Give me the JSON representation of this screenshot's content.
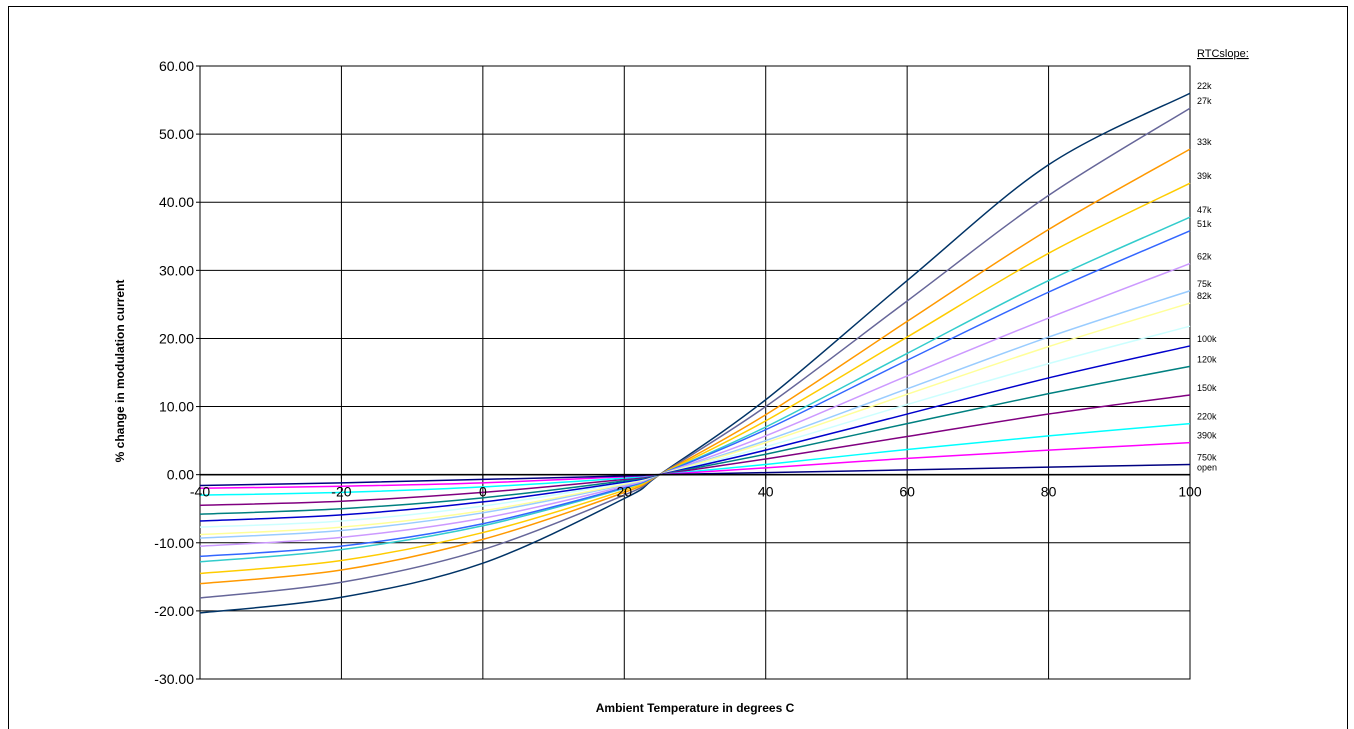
{
  "chart_data": {
    "type": "line",
    "title": "",
    "xlabel": "Ambient Temperature in degrees C",
    "ylabel": "% change in modulation current",
    "xlim": [
      -40,
      100
    ],
    "ylim": [
      -30,
      60
    ],
    "xticks": [
      -40,
      -20,
      0,
      20,
      40,
      60,
      80,
      100
    ],
    "yticks": [
      -30,
      -20,
      -10,
      0,
      10,
      20,
      30,
      40,
      50,
      60
    ],
    "xtick_labels": [
      "-40",
      "-20",
      "0",
      "20",
      "40",
      "60",
      "80",
      "100"
    ],
    "ytick_labels": [
      "-30.00",
      "-20.00",
      "-10.00",
      "0.00",
      "10.00",
      "20.00",
      "30.00",
      "40.00",
      "50.00",
      "60.00"
    ],
    "grid": true,
    "legend_title": "RTCslope:",
    "legend_placement": "right",
    "x": [
      -40,
      -20,
      0,
      20,
      25,
      40,
      60,
      80,
      100
    ],
    "series": [
      {
        "name": "22k",
        "color": "#003366",
        "values": [
          -20.3,
          -18.0,
          -13.0,
          -3.5,
          0,
          11.0,
          28.5,
          45.5,
          56.0
        ]
      },
      {
        "name": "27k",
        "color": "#666699",
        "values": [
          -18.1,
          -15.8,
          -11.0,
          -3.0,
          0,
          10.0,
          25.5,
          41.0,
          53.8
        ]
      },
      {
        "name": "33k",
        "color": "#FF9900",
        "values": [
          -16.0,
          -14.0,
          -9.5,
          -2.6,
          0,
          8.8,
          22.5,
          36.0,
          47.8
        ]
      },
      {
        "name": "39k",
        "color": "#FFCC00",
        "values": [
          -14.5,
          -12.6,
          -8.5,
          -2.3,
          0,
          7.9,
          20.2,
          32.5,
          42.8
        ]
      },
      {
        "name": "47k",
        "color": "#33CCCC",
        "values": [
          -12.8,
          -11.0,
          -7.5,
          -2.0,
          0,
          7.0,
          17.8,
          28.5,
          37.8
        ]
      },
      {
        "name": "51k",
        "color": "#3366FF",
        "values": [
          -12.0,
          -10.5,
          -7.2,
          -1.9,
          0,
          6.6,
          16.8,
          26.8,
          35.8
        ]
      },
      {
        "name": "62k",
        "color": "#CC99FF",
        "values": [
          -10.5,
          -9.2,
          -6.4,
          -1.7,
          0,
          5.7,
          14.5,
          23.0,
          31.0
        ]
      },
      {
        "name": "75k",
        "color": "#99CCFF",
        "values": [
          -9.3,
          -8.2,
          -5.6,
          -1.5,
          0,
          5.0,
          12.6,
          20.2,
          27.0
        ]
      },
      {
        "name": "82k",
        "color": "#FFFF99",
        "values": [
          -8.8,
          -7.7,
          -5.3,
          -1.4,
          0,
          4.7,
          11.8,
          18.8,
          25.2
        ]
      },
      {
        "name": "",
        "color": "#CCFFFF",
        "values": [
          -7.7,
          -6.8,
          -4.6,
          -1.2,
          0,
          4.1,
          10.3,
          16.3,
          21.8
        ]
      },
      {
        "name": "100k",
        "color": "#0000CC",
        "values": [
          -6.8,
          -5.9,
          -4.0,
          -1.1,
          0,
          3.6,
          8.9,
          14.2,
          18.9
        ]
      },
      {
        "name": "120k",
        "color": "#008080",
        "values": [
          -5.8,
          -5.0,
          -3.4,
          -0.9,
          0,
          3.0,
          7.5,
          11.9,
          15.9
        ]
      },
      {
        "name": "150k",
        "color": "#800080",
        "values": [
          -4.5,
          -3.9,
          -2.6,
          -0.7,
          0,
          2.3,
          5.6,
          8.9,
          11.7
        ]
      },
      {
        "name": "220k",
        "color": "#00FFFF",
        "values": [
          -3.0,
          -2.6,
          -1.8,
          -0.5,
          0,
          1.5,
          3.7,
          5.7,
          7.5
        ]
      },
      {
        "name": "390k",
        "color": "#FF00FF",
        "values": [
          -2.0,
          -1.7,
          -1.2,
          -0.3,
          0,
          1.0,
          2.4,
          3.6,
          4.7
        ]
      },
      {
        "name": "750k",
        "color": "#000080",
        "values": [
          -1.6,
          -1.2,
          -0.7,
          -0.2,
          0,
          0.3,
          0.7,
          1.1,
          1.5
        ]
      },
      {
        "name": "open",
        "color": "#000000",
        "values": [
          0,
          0,
          0,
          0,
          0,
          0,
          0,
          0,
          0
        ]
      }
    ]
  }
}
